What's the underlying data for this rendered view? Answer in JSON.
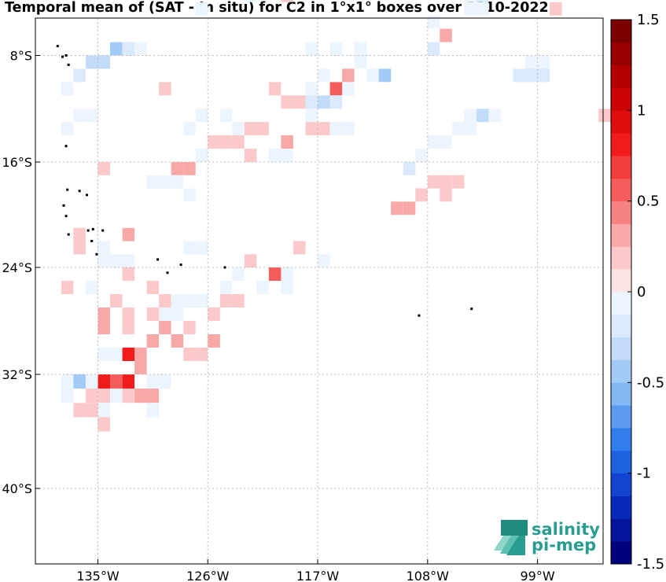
{
  "title": "Temporal mean of (SAT - In situ) for C2 in 1°x1° boxes over 2010-2022",
  "logo": {
    "line1": "salinity",
    "line2": "pi-mep",
    "color": "#2a9d92"
  },
  "chart_data": {
    "type": "heatmap",
    "title": "Temporal mean of (SAT - In situ) for C2 in 1°x1° boxes over 2010-2022",
    "xlim": [
      -140,
      -93
    ],
    "ylim": [
      -46,
      -3
    ],
    "xticks": [
      {
        "value": -135,
        "label": "135°W"
      },
      {
        "value": -126,
        "label": "126°W"
      },
      {
        "value": -117,
        "label": "117°W"
      },
      {
        "value": -108,
        "label": "108°W"
      },
      {
        "value": -99,
        "label": "99°W"
      }
    ],
    "yticks": [
      {
        "value": -8,
        "label": "8°S"
      },
      {
        "value": -16,
        "label": "16°S"
      },
      {
        "value": -24,
        "label": "24°S"
      },
      {
        "value": -32,
        "label": "32°S"
      },
      {
        "value": -40,
        "label": "40°S"
      }
    ],
    "grid": true,
    "colorbar": {
      "min": -1.5,
      "max": 1.5,
      "step": 0.125,
      "tick_values": [
        1.5,
        1,
        0.5,
        0,
        -0.5,
        -1,
        -1.5
      ],
      "tick_labels": [
        "1.5",
        "1",
        "0.5",
        "0",
        "-0.5",
        "-1",
        "-1.5"
      ]
    },
    "cells": [
      [
        -126.5,
        -4.5,
        -0.1
      ],
      [
        -122.5,
        -3.5,
        -0.1
      ],
      [
        -119.5,
        -3.5,
        0.15
      ],
      [
        -104.5,
        -3.5,
        -0.1
      ],
      [
        -103.5,
        -3.5,
        -0.2
      ],
      [
        -104.5,
        -4.5,
        -0.1
      ],
      [
        -103.5,
        -4.5,
        -0.1
      ],
      [
        -97.5,
        -4.5,
        0.2
      ],
      [
        -107.5,
        -5.5,
        -0.1
      ],
      [
        -106.5,
        -6.5,
        0.3
      ],
      [
        -133.5,
        -7.5,
        -0.4
      ],
      [
        -132.5,
        -7.5,
        -0.2
      ],
      [
        -131.5,
        -7.5,
        -0.1
      ],
      [
        -107.5,
        -7.5,
        -0.15
      ],
      [
        -117.5,
        -7.5,
        -0.1
      ],
      [
        -115.5,
        -7.5,
        -0.1
      ],
      [
        -113.5,
        -7.5,
        -0.1
      ],
      [
        -99.5,
        -8.5,
        -0.1
      ],
      [
        -98.5,
        -8.5,
        -0.1
      ],
      [
        -135.5,
        -8.5,
        -0.35
      ],
      [
        -134.5,
        -8.5,
        -0.3
      ],
      [
        -136.5,
        -9.5,
        -0.15
      ],
      [
        -113.5,
        -8.5,
        -0.1
      ],
      [
        -112.5,
        -9.5,
        -0.1
      ],
      [
        -116.5,
        -9.5,
        -0.1
      ],
      [
        -114.5,
        -9.5,
        0.35
      ],
      [
        -111.5,
        -9.5,
        -0.4
      ],
      [
        -100.5,
        -9.5,
        -0.15
      ],
      [
        -99.5,
        -9.5,
        -0.15
      ],
      [
        -98.5,
        -9.5,
        -0.15
      ],
      [
        -137.5,
        -10.5,
        -0.1
      ],
      [
        -114.5,
        -10.5,
        -0.1
      ],
      [
        -115.5,
        -10.5,
        0.55
      ],
      [
        -117.5,
        -10.5,
        -0.1
      ],
      [
        -129.5,
        -10.5,
        0.15
      ],
      [
        -120.5,
        -10.5,
        0.15
      ],
      [
        -117.5,
        -11.5,
        -0.15
      ],
      [
        -116.5,
        -11.5,
        -0.35
      ],
      [
        -115.5,
        -11.5,
        -0.25
      ],
      [
        -118.5,
        -11.5,
        0.15
      ],
      [
        -119.5,
        -11.5,
        0.15
      ],
      [
        -136.5,
        -12.5,
        -0.1
      ],
      [
        -135.5,
        -12.5,
        -0.1
      ],
      [
        -126.5,
        -12.5,
        -0.1
      ],
      [
        -124.5,
        -12.5,
        -0.1
      ],
      [
        -117.5,
        -12.5,
        -0.1
      ],
      [
        -103.5,
        -12.5,
        -0.35
      ],
      [
        -104.5,
        -12.5,
        -0.1
      ],
      [
        -102.5,
        -12.5,
        -0.1
      ],
      [
        -93.5,
        -12.5,
        0.15
      ],
      [
        -137.5,
        -13.5,
        -0.1
      ],
      [
        -127.5,
        -13.5,
        -0.1
      ],
      [
        -123.5,
        -13.5,
        -0.1
      ],
      [
        -122.5,
        -13.5,
        0.15
      ],
      [
        -121.5,
        -13.5,
        0.15
      ],
      [
        -116.5,
        -13.5,
        0.15
      ],
      [
        -117.5,
        -13.5,
        0.15
      ],
      [
        -115.5,
        -13.5,
        -0.1
      ],
      [
        -114.5,
        -13.5,
        -0.1
      ],
      [
        -105.5,
        -13.5,
        -0.1
      ],
      [
        -104.5,
        -13.5,
        -0.1
      ],
      [
        -125.5,
        -14.5,
        0.15
      ],
      [
        -124.5,
        -14.5,
        0.15
      ],
      [
        -123.5,
        -14.5,
        0.15
      ],
      [
        -119.5,
        -14.5,
        0.3
      ],
      [
        -107.5,
        -14.5,
        -0.1
      ],
      [
        -106.5,
        -14.5,
        -0.1
      ],
      [
        -126.5,
        -15.5,
        -0.1
      ],
      [
        -120.5,
        -15.5,
        -0.1
      ],
      [
        -119.5,
        -15.5,
        -0.1
      ],
      [
        -122.5,
        -15.5,
        0.15
      ],
      [
        -108.5,
        -15.5,
        -0.1
      ],
      [
        -134.5,
        -16.5,
        0.2
      ],
      [
        -128.5,
        -16.5,
        0.25
      ],
      [
        -127.5,
        -16.5,
        0.25
      ],
      [
        -109.5,
        -16.5,
        -0.15
      ],
      [
        -130.5,
        -17.5,
        -0.1
      ],
      [
        -129.5,
        -17.5,
        -0.1
      ],
      [
        -128.5,
        -17.5,
        -0.1
      ],
      [
        -106.5,
        -17.5,
        0.15
      ],
      [
        -105.5,
        -17.5,
        0.15
      ],
      [
        -107.5,
        -17.5,
        0.15
      ],
      [
        -127.5,
        -18.5,
        -0.1
      ],
      [
        -108.5,
        -18.5,
        0.15
      ],
      [
        -106.5,
        -18.5,
        0.15
      ],
      [
        -110.5,
        -19.5,
        0.25
      ],
      [
        -109.5,
        -19.5,
        0.25
      ],
      [
        -136.5,
        -21.5,
        0.2
      ],
      [
        -132.5,
        -21.5,
        0.3
      ],
      [
        -136.5,
        -22.5,
        0.2
      ],
      [
        -118.5,
        -22.5,
        0.2
      ],
      [
        -127.5,
        -22.5,
        -0.1
      ],
      [
        -126.5,
        -22.5,
        -0.1
      ],
      [
        -134.5,
        -22.5,
        -0.1
      ],
      [
        -134.5,
        -23.5,
        -0.1
      ],
      [
        -133.5,
        -23.5,
        -0.1
      ],
      [
        -132.5,
        -23.5,
        -0.1
      ],
      [
        -122.5,
        -23.5,
        0.15
      ],
      [
        -116.5,
        -23.5,
        -0.1
      ],
      [
        -132.5,
        -24.5,
        0.15
      ],
      [
        -123.5,
        -24.5,
        -0.1
      ],
      [
        -120.5,
        -24.5,
        -0.1
      ],
      [
        -119.5,
        -24.5,
        -0.1
      ],
      [
        -120.5,
        -24.5,
        0.6
      ],
      [
        -137.5,
        -25.5,
        0.15
      ],
      [
        -135.5,
        -25.5,
        -0.1
      ],
      [
        -130.5,
        -25.5,
        0.15
      ],
      [
        -124.5,
        -25.5,
        -0.1
      ],
      [
        -121.5,
        -25.5,
        -0.1
      ],
      [
        -127.5,
        -26.5,
        -0.1
      ],
      [
        -126.5,
        -26.5,
        -0.1
      ],
      [
        -124.5,
        -26.5,
        0.15
      ],
      [
        -123.5,
        -26.5,
        0.15
      ],
      [
        -119.5,
        -25.5,
        -0.1
      ],
      [
        -133.5,
        -26.5,
        0.15
      ],
      [
        -129.5,
        -26.5,
        0.15
      ],
      [
        -128.5,
        -26.5,
        -0.1
      ],
      [
        -129.5,
        -27.5,
        -0.1
      ],
      [
        -128.5,
        -27.5,
        -0.1
      ],
      [
        -134.5,
        -27.5,
        0.35
      ],
      [
        -132.5,
        -27.5,
        0.2
      ],
      [
        -130.5,
        -27.5,
        0.15
      ],
      [
        -127.5,
        -28.5,
        0.15
      ],
      [
        -125.5,
        -27.5,
        0.15
      ],
      [
        -134.5,
        -28.5,
        0.35
      ],
      [
        -132.5,
        -28.5,
        0.2
      ],
      [
        -129.5,
        -28.5,
        0.35
      ],
      [
        -130.5,
        -29.5,
        0.25
      ],
      [
        -128.5,
        -29.5,
        0.25
      ],
      [
        -131.5,
        -30.5,
        0.25
      ],
      [
        -127.5,
        -30.5,
        0.2
      ],
      [
        -126.5,
        -30.5,
        0.2
      ],
      [
        -125.5,
        -29.5,
        0.25
      ],
      [
        -134.5,
        -30.5,
        -0.1
      ],
      [
        -133.5,
        -30.5,
        -0.1
      ],
      [
        -132.5,
        -30.5,
        0.75
      ],
      [
        -131.5,
        -31.5,
        0.25
      ],
      [
        -135.5,
        -32.5,
        -0.1
      ],
      [
        -134.5,
        -32.5,
        -0.1
      ],
      [
        -133.5,
        -32.5,
        -0.1
      ],
      [
        -137.5,
        -32.5,
        -0.1
      ],
      [
        -136.5,
        -32.5,
        -0.4
      ],
      [
        -135.5,
        -32.5,
        -0.1
      ],
      [
        -134.5,
        -32.5,
        0.75
      ],
      [
        -133.5,
        -32.5,
        0.6
      ],
      [
        -132.5,
        -32.5,
        0.75
      ],
      [
        -130.5,
        -32.5,
        -0.1
      ],
      [
        -129.5,
        -32.5,
        -0.1
      ],
      [
        -137.5,
        -33.5,
        -0.1
      ],
      [
        -135.5,
        -33.5,
        0.2
      ],
      [
        -134.5,
        -33.5,
        0.2
      ],
      [
        -133.5,
        -33.5,
        -0.1
      ],
      [
        -132.5,
        -33.5,
        0.2
      ],
      [
        -131.5,
        -33.5,
        0.35
      ],
      [
        -130.5,
        -33.5,
        0.35
      ],
      [
        -136.5,
        -34.5,
        0.15
      ],
      [
        -135.5,
        -34.5,
        0.15
      ],
      [
        -134.5,
        -34.5,
        -0.1
      ],
      [
        -134.5,
        -35.5,
        0.2
      ],
      [
        -130.5,
        -34.5,
        -0.1
      ]
    ]
  }
}
